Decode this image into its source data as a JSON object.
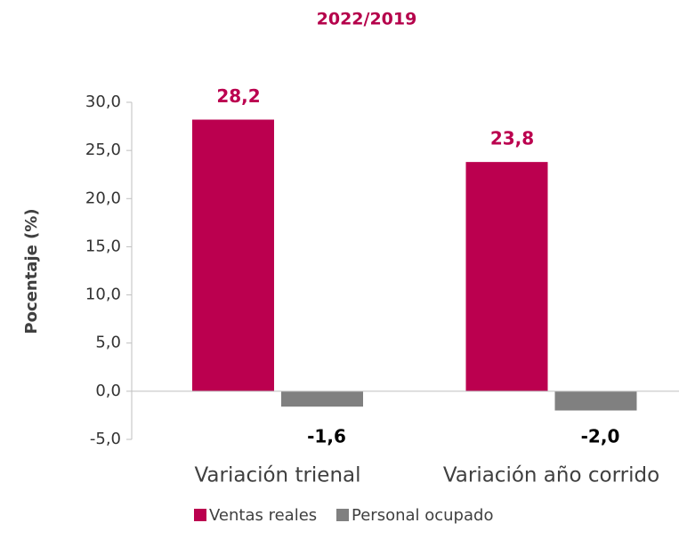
{
  "chart_data": {
    "type": "bar",
    "title": "2022/2019",
    "y_label": "Pocentaje (%)",
    "categories": [
      "Variación trienal",
      "Variación año corrido"
    ],
    "series": [
      {
        "name": "Ventas reales",
        "color": "#bb004f",
        "values": [
          28.2,
          23.8
        ],
        "value_labels": [
          "28,2",
          "23,8"
        ]
      },
      {
        "name": "Personal ocupado",
        "color": "#808080",
        "values": [
          -1.6,
          -2.0
        ],
        "value_labels": [
          "-1,6",
          "-2,0"
        ]
      }
    ],
    "ylim": [
      -5,
      30
    ],
    "yticks": [
      {
        "value": -5,
        "label": "-5,0"
      },
      {
        "value": 0,
        "label": "0,0"
      },
      {
        "value": 5,
        "label": "5,0"
      },
      {
        "value": 10,
        "label": "10,0"
      },
      {
        "value": 15,
        "label": "15,0"
      },
      {
        "value": 20,
        "label": "20,0"
      },
      {
        "value": 25,
        "label": "25,0"
      },
      {
        "value": 30,
        "label": "30,0"
      }
    ],
    "legend": "bottom"
  }
}
